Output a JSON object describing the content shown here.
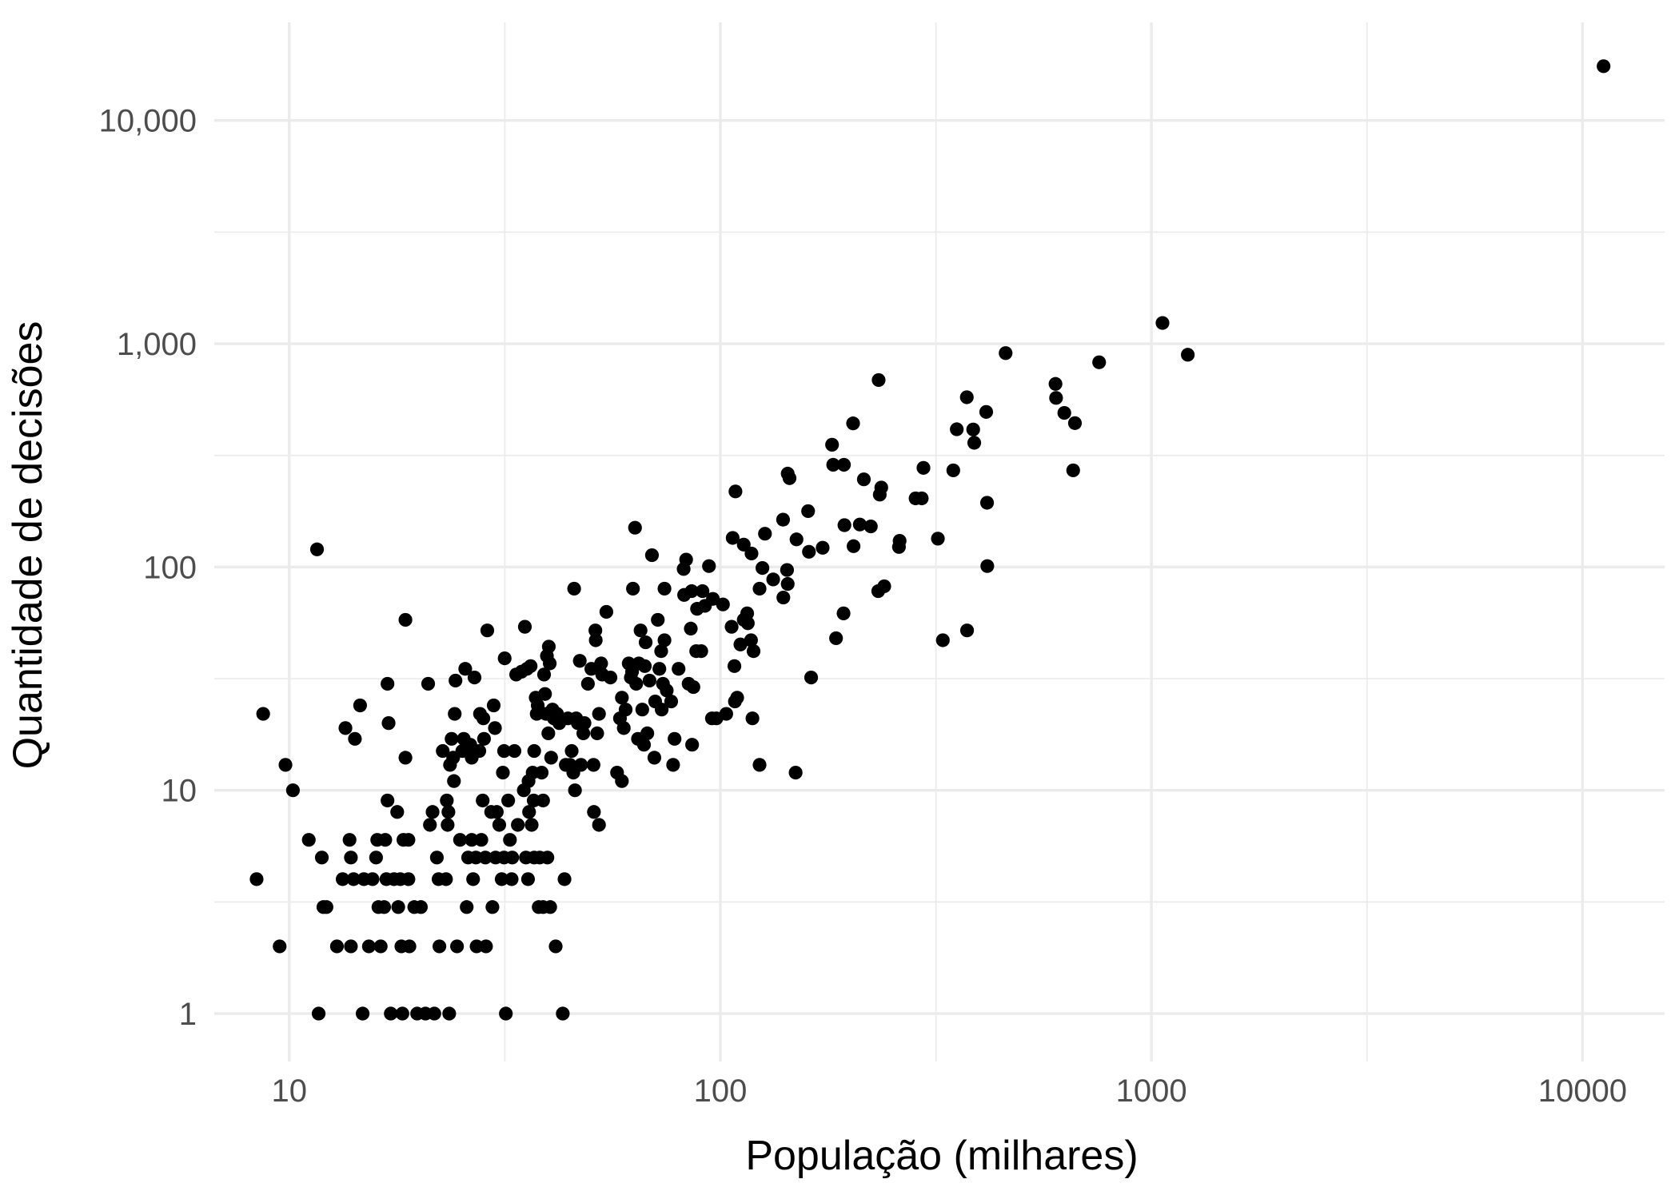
{
  "chart_data": {
    "type": "scatter",
    "title": "",
    "xlabel": "População (milhares)",
    "ylabel": "Quantidade de decisões",
    "x_scale": "log10",
    "y_scale": "log10",
    "xlim": [
      6.7,
      15500
    ],
    "ylim": [
      0.61,
      27500
    ],
    "x_ticks": [
      {
        "value": 10,
        "label": "10"
      },
      {
        "value": 100,
        "label": "100"
      },
      {
        "value": 1000,
        "label": "1000"
      },
      {
        "value": 10000,
        "label": "10000"
      }
    ],
    "y_ticks": [
      {
        "value": 1,
        "label": "1"
      },
      {
        "value": 10,
        "label": "10"
      },
      {
        "value": 100,
        "label": "100"
      },
      {
        "value": 1000,
        "label": "1,000"
      },
      {
        "value": 10000,
        "label": "10,000"
      }
    ],
    "grid": true,
    "legend": "none",
    "point_color": "#000000",
    "points": [
      [
        8.4,
        4
      ],
      [
        8.7,
        22
      ],
      [
        9.5,
        2
      ],
      [
        9.8,
        13
      ],
      [
        10.2,
        10
      ],
      [
        11.1,
        6
      ],
      [
        11.6,
        120
      ],
      [
        11.7,
        1
      ],
      [
        11.9,
        5
      ],
      [
        12.0,
        3
      ],
      [
        12.2,
        3
      ],
      [
        12.9,
        2
      ],
      [
        13.3,
        4
      ],
      [
        13.5,
        19
      ],
      [
        13.9,
        2
      ],
      [
        13.8,
        6
      ],
      [
        13.9,
        5
      ],
      [
        14.1,
        4
      ],
      [
        14.2,
        17
      ],
      [
        14.6,
        24
      ],
      [
        14.8,
        1
      ],
      [
        14.9,
        4
      ],
      [
        15.3,
        2
      ],
      [
        15.6,
        4
      ],
      [
        15.9,
        5
      ],
      [
        16.0,
        6
      ],
      [
        16.1,
        3
      ],
      [
        16.3,
        2
      ],
      [
        16.6,
        3
      ],
      [
        16.7,
        6
      ],
      [
        16.8,
        4
      ],
      [
        16.9,
        30
      ],
      [
        17.0,
        20
      ],
      [
        16.9,
        9
      ],
      [
        17.2,
        1
      ],
      [
        17.5,
        4
      ],
      [
        17.8,
        8
      ],
      [
        17.9,
        3
      ],
      [
        18.1,
        4
      ],
      [
        18.2,
        2
      ],
      [
        18.3,
        1
      ],
      [
        18.4,
        6
      ],
      [
        18.6,
        58
      ],
      [
        18.6,
        14
      ],
      [
        18.9,
        4
      ],
      [
        18.9,
        6
      ],
      [
        19.0,
        2
      ],
      [
        19.5,
        3
      ],
      [
        19.8,
        1
      ],
      [
        20.2,
        3
      ],
      [
        20.7,
        1
      ],
      [
        21.0,
        30
      ],
      [
        21.2,
        7
      ],
      [
        21.5,
        8
      ],
      [
        21.7,
        1
      ],
      [
        22.0,
        5
      ],
      [
        22.2,
        4
      ],
      [
        22.3,
        2
      ],
      [
        22.7,
        15
      ],
      [
        23.1,
        4
      ],
      [
        23.2,
        9
      ],
      [
        23.3,
        7
      ],
      [
        23.4,
        8
      ],
      [
        23.5,
        1
      ],
      [
        23.6,
        13
      ],
      [
        23.8,
        17
      ],
      [
        24.0,
        14
      ],
      [
        24.1,
        11
      ],
      [
        24.2,
        22
      ],
      [
        24.3,
        31
      ],
      [
        24.5,
        2
      ],
      [
        24.9,
        6
      ],
      [
        25.2,
        15
      ],
      [
        25.4,
        17
      ],
      [
        25.6,
        35
      ],
      [
        25.8,
        3
      ],
      [
        26.0,
        5
      ],
      [
        26.3,
        16
      ],
      [
        26.5,
        14
      ],
      [
        26.5,
        6
      ],
      [
        26.7,
        4
      ],
      [
        26.9,
        32
      ],
      [
        27.1,
        5
      ],
      [
        27.2,
        2
      ],
      [
        27.6,
        15
      ],
      [
        27.7,
        22
      ],
      [
        27.9,
        6
      ],
      [
        28.1,
        9
      ],
      [
        28.2,
        21
      ],
      [
        28.5,
        5
      ],
      [
        28.3,
        17
      ],
      [
        28.6,
        2
      ],
      [
        28.8,
        52
      ],
      [
        29.4,
        8
      ],
      [
        29.6,
        3
      ],
      [
        29.8,
        24
      ],
      [
        30.0,
        19
      ],
      [
        30.1,
        5
      ],
      [
        30.3,
        8
      ],
      [
        30.7,
        7
      ],
      [
        31.1,
        4
      ],
      [
        31.3,
        12
      ],
      [
        31.5,
        15
      ],
      [
        31.5,
        5
      ],
      [
        31.6,
        39
      ],
      [
        31.8,
        1
      ],
      [
        32.2,
        9
      ],
      [
        32.5,
        6
      ],
      [
        32.8,
        4
      ],
      [
        32.9,
        5
      ],
      [
        33.3,
        15
      ],
      [
        33.6,
        33
      ],
      [
        33.9,
        7
      ],
      [
        34.6,
        34
      ],
      [
        35.0,
        10
      ],
      [
        35.2,
        54
      ],
      [
        35.4,
        5
      ],
      [
        35.6,
        35
      ],
      [
        35.8,
        4
      ],
      [
        35.9,
        11
      ],
      [
        36.0,
        8
      ],
      [
        36.3,
        36
      ],
      [
        36.5,
        7
      ],
      [
        36.7,
        12
      ],
      [
        36.9,
        9
      ],
      [
        37.0,
        15
      ],
      [
        37.0,
        5
      ],
      [
        37.3,
        26
      ],
      [
        37.5,
        22
      ],
      [
        37.7,
        24
      ],
      [
        37.9,
        3
      ],
      [
        38.1,
        5
      ],
      [
        38.5,
        12
      ],
      [
        38.8,
        3
      ],
      [
        38.8,
        9
      ],
      [
        39.0,
        33
      ],
      [
        39.2,
        27
      ],
      [
        39.4,
        22
      ],
      [
        39.6,
        40
      ],
      [
        39.7,
        5
      ],
      [
        39.9,
        18
      ],
      [
        40.0,
        44
      ],
      [
        40.2,
        37
      ],
      [
        40.3,
        3
      ],
      [
        40.5,
        14
      ],
      [
        40.8,
        23
      ],
      [
        41.1,
        21
      ],
      [
        41.5,
        2
      ],
      [
        41.8,
        22
      ],
      [
        42.3,
        20
      ],
      [
        43.1,
        1
      ],
      [
        43.5,
        4
      ],
      [
        43.8,
        13
      ],
      [
        44.3,
        21
      ],
      [
        44.8,
        13
      ],
      [
        45.2,
        15
      ],
      [
        45.6,
        12
      ],
      [
        45.8,
        80
      ],
      [
        46.0,
        10
      ],
      [
        46.3,
        21
      ],
      [
        46.7,
        20
      ],
      [
        47.2,
        38
      ],
      [
        47.5,
        13
      ],
      [
        48.1,
        18
      ],
      [
        48.4,
        20
      ],
      [
        49.3,
        30
      ],
      [
        50.2,
        35
      ],
      [
        50.8,
        13
      ],
      [
        50.9,
        8
      ],
      [
        51.3,
        52
      ],
      [
        51.4,
        47
      ],
      [
        51.8,
        18
      ],
      [
        52.3,
        22
      ],
      [
        52.3,
        7
      ],
      [
        52.9,
        37
      ],
      [
        53.2,
        33
      ],
      [
        54.4,
        63
      ],
      [
        55.6,
        32
      ],
      [
        57.6,
        12
      ],
      [
        58.5,
        21
      ],
      [
        59.1,
        26
      ],
      [
        59.1,
        11
      ],
      [
        59.7,
        19
      ],
      [
        60.3,
        23
      ],
      [
        61.3,
        37
      ],
      [
        62.0,
        32
      ],
      [
        62.4,
        34
      ],
      [
        62.7,
        80
      ],
      [
        63.4,
        150
      ],
      [
        63.8,
        30
      ],
      [
        64.4,
        17
      ],
      [
        64.7,
        37
      ],
      [
        65.3,
        52
      ],
      [
        65.9,
        23
      ],
      [
        66.5,
        16
      ],
      [
        66.8,
        36
      ],
      [
        67.1,
        46
      ],
      [
        67.7,
        18
      ],
      [
        68.5,
        31
      ],
      [
        69.4,
        113
      ],
      [
        70.3,
        14
      ],
      [
        70.6,
        25
      ],
      [
        71.6,
        58
      ],
      [
        72.2,
        35
      ],
      [
        72.9,
        42
      ],
      [
        73.1,
        23
      ],
      [
        73.6,
        30
      ],
      [
        74.2,
        47
      ],
      [
        74.2,
        80
      ],
      [
        75.1,
        28
      ],
      [
        76.9,
        25
      ],
      [
        77.7,
        13
      ],
      [
        78.3,
        17
      ],
      [
        80.0,
        35
      ],
      [
        82.2,
        98
      ],
      [
        82.4,
        75
      ],
      [
        83.3,
        108
      ],
      [
        84.4,
        30
      ],
      [
        85.4,
        53
      ],
      [
        85.8,
        78
      ],
      [
        86.0,
        16
      ],
      [
        86.6,
        29
      ],
      [
        87.9,
        42
      ],
      [
        88.3,
        65
      ],
      [
        90.3,
        42
      ],
      [
        90.9,
        78
      ],
      [
        92.1,
        67
      ],
      [
        94.1,
        101
      ],
      [
        95.6,
        21
      ],
      [
        96.1,
        72
      ],
      [
        97.9,
        21
      ],
      [
        101.4,
        68
      ],
      [
        103.2,
        22
      ],
      [
        106.2,
        54
      ],
      [
        107.8,
        36
      ],
      [
        106.8,
        135
      ],
      [
        108.1,
        25
      ],
      [
        108.4,
        218
      ],
      [
        109.4,
        26
      ],
      [
        111.3,
        45
      ],
      [
        113.3,
        58
      ],
      [
        113.3,
        126
      ],
      [
        115.4,
        62
      ],
      [
        115.8,
        56
      ],
      [
        117.8,
        47
      ],
      [
        118.1,
        115
      ],
      [
        119.4,
        42
      ],
      [
        118.7,
        21
      ],
      [
        123.3,
        13
      ],
      [
        123.3,
        80
      ],
      [
        125.2,
        99
      ],
      [
        126.9,
        141
      ],
      [
        132.6,
        88
      ],
      [
        139.8,
        163
      ],
      [
        140.0,
        73
      ],
      [
        142.8,
        97
      ],
      [
        143.3,
        84
      ],
      [
        143.3,
        262
      ],
      [
        144.7,
        250
      ],
      [
        149.5,
        12
      ],
      [
        150.2,
        133
      ],
      [
        159.8,
        178
      ],
      [
        160.5,
        117
      ],
      [
        162.4,
        32
      ],
      [
        172.7,
        122
      ],
      [
        181.6,
        353
      ],
      [
        182.7,
        287
      ],
      [
        185.5,
        48
      ],
      [
        193.1,
        62
      ],
      [
        193.5,
        287
      ],
      [
        194.0,
        154
      ],
      [
        203.2,
        440
      ],
      [
        203.7,
        124
      ],
      [
        210.6,
        155
      ],
      [
        215.2,
        247
      ],
      [
        223.4,
        152
      ],
      [
        232.4,
        78
      ],
      [
        232.9,
        688
      ],
      [
        234.3,
        211
      ],
      [
        236.2,
        227
      ],
      [
        240.0,
        82
      ],
      [
        259.6,
        123
      ],
      [
        260.5,
        131
      ],
      [
        283.7,
        203
      ],
      [
        293.2,
        203
      ],
      [
        295.9,
        278
      ],
      [
        319.6,
        134
      ],
      [
        328.2,
        47
      ],
      [
        347.0,
        271
      ],
      [
        353.5,
        414
      ],
      [
        373.0,
        576
      ],
      [
        373.5,
        52
      ],
      [
        385.9,
        413
      ],
      [
        388.1,
        360
      ],
      [
        413.7,
        495
      ],
      [
        415.6,
        194
      ],
      [
        416.1,
        101
      ],
      [
        458.9,
        908
      ],
      [
        599.0,
        661
      ],
      [
        600.8,
        572
      ],
      [
        627.9,
        490
      ],
      [
        658.3,
        271
      ],
      [
        664.5,
        441
      ],
      [
        756.2,
        826
      ],
      [
        1060.8,
        1239
      ],
      [
        1214.2,
        893
      ],
      [
        11187.7,
        17500
      ]
    ]
  }
}
